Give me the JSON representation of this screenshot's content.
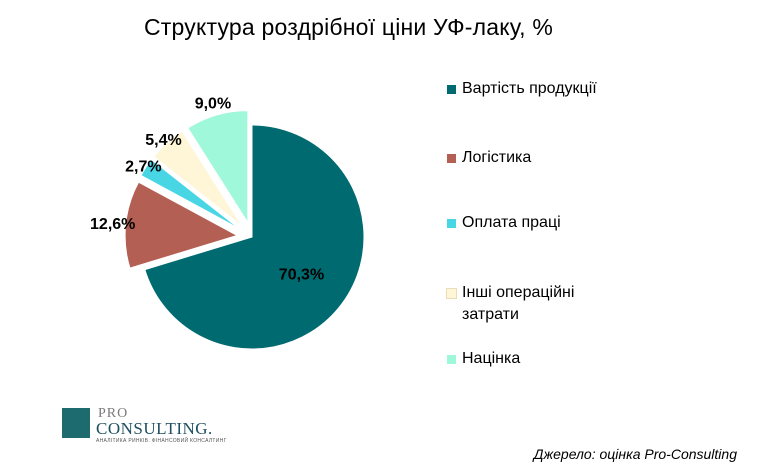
{
  "page": {
    "title": "Структура  роздрібної ціни УФ-лаку, %"
  },
  "chart_data": {
    "type": "pie",
    "title": "Структура  роздрібної ціни УФ-лаку, %",
    "categories": [
      "Вартість продукції",
      "Логістика",
      "Оплата  праці",
      "Інші операційні затрати",
      "Націнка"
    ],
    "values": [
      70.3,
      12.6,
      2.7,
      5.4,
      9.0
    ],
    "data_labels": [
      "70,3%",
      "12,6%",
      "2,7%",
      "5,4%",
      "9,0%"
    ],
    "colors": [
      "#006a71",
      "#b45f54",
      "#49d6e4",
      "#fef6d6",
      "#a0f8da"
    ],
    "exploded": [
      false,
      true,
      true,
      true,
      true
    ],
    "legend_position": "right"
  },
  "legend": {
    "items": [
      {
        "label": "Вартість продукції",
        "color": "#006a71"
      },
      {
        "label": "Логістика",
        "color": "#b45f54"
      },
      {
        "label": "Оплата  праці",
        "color": "#49d6e4"
      },
      {
        "label": "Інші операційні затрати",
        "color": "#fef6d6"
      },
      {
        "label": "Націнка",
        "color": "#a0f8da"
      }
    ]
  },
  "logo": {
    "top": "PRO",
    "main": "CONSULTING.",
    "sub": "АНАЛІТИКА РИНКІВ. ФІНАНСОВИЙ КОНСАЛТИНГ"
  },
  "source": "Джерело: оцінка Pro-Consulting"
}
